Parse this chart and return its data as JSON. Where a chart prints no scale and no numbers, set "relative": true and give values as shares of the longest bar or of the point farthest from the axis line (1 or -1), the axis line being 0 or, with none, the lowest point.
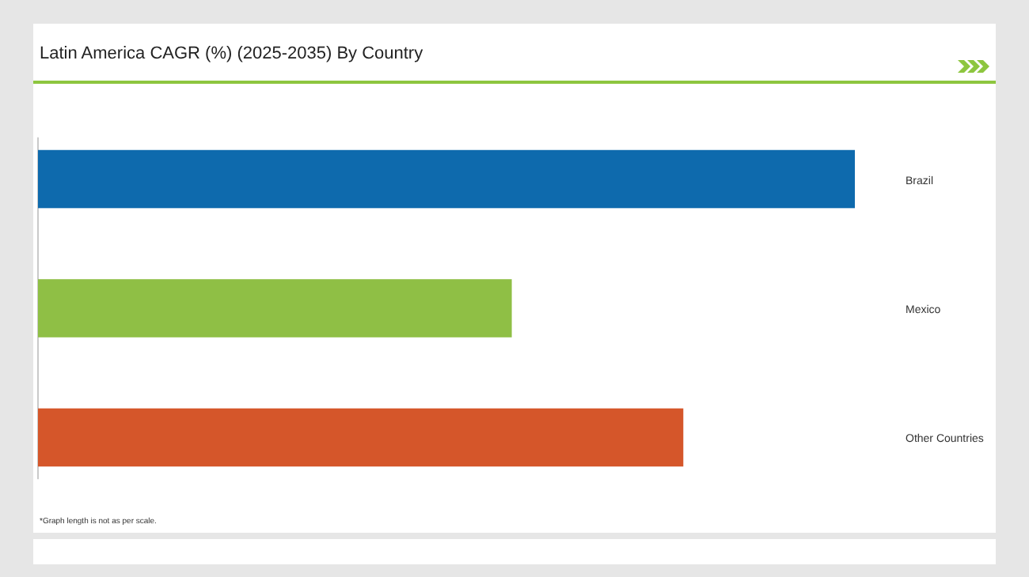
{
  "chart_data": {
    "type": "bar",
    "orientation": "horizontal",
    "relative": true,
    "title": "Latin America CAGR (%) (2025-2035) By Country",
    "categories": [
      "Brazil",
      "Mexico",
      "Other Countries"
    ],
    "values": [
      1,
      0.58,
      0.79
    ],
    "colors": [
      "#0e6aad",
      "#8fbf45",
      "#d5562a"
    ],
    "annotations": [
      "*Graph length is not as per scale."
    ]
  }
}
